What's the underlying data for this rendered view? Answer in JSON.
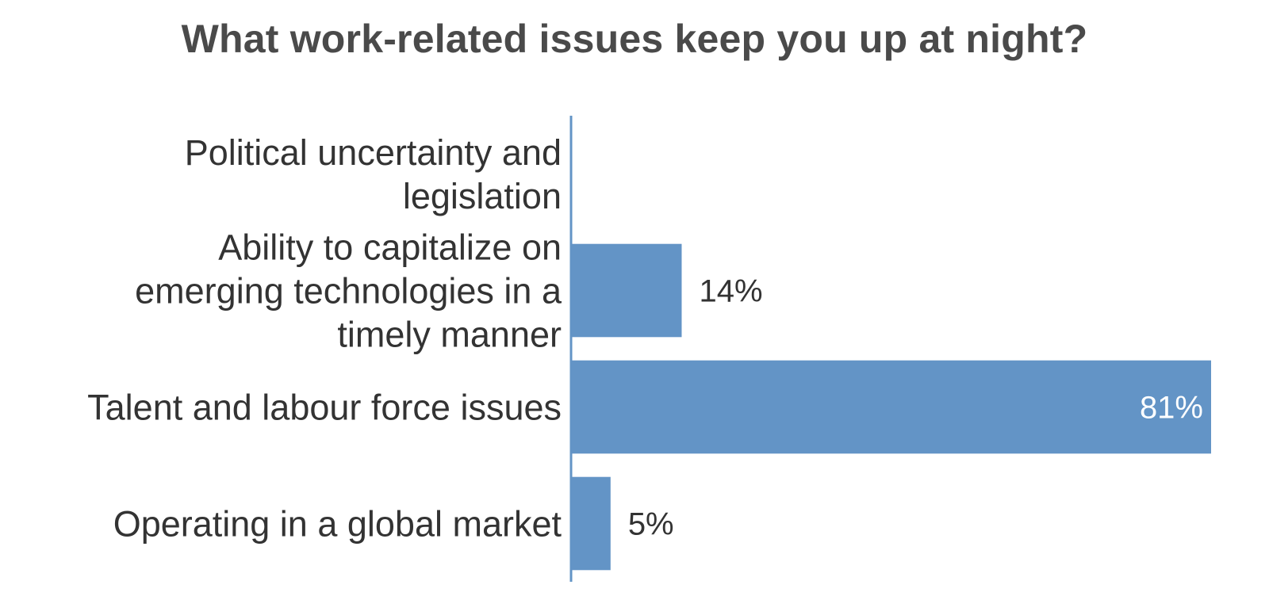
{
  "chart_data": {
    "type": "bar",
    "orientation": "horizontal",
    "title": "What work-related issues keep you up at night?",
    "categories": [
      [
        "Political uncertainty and",
        "legislation"
      ],
      [
        "Ability to capitalize on",
        "emerging technologies in a",
        "timely manner"
      ],
      [
        "Talent and labour force issues"
      ],
      [
        "Operating in a global market"
      ]
    ],
    "values": [
      0,
      14,
      81,
      5
    ],
    "data_labels": [
      "",
      "14%",
      "81%",
      "5%"
    ],
    "xlim": [
      0,
      81
    ],
    "grid": false,
    "legend": "none",
    "bar_color": "#6394c6",
    "axis_color": "#6394c6",
    "label_color_outside": "#333333",
    "label_color_inside": "#ffffff"
  }
}
